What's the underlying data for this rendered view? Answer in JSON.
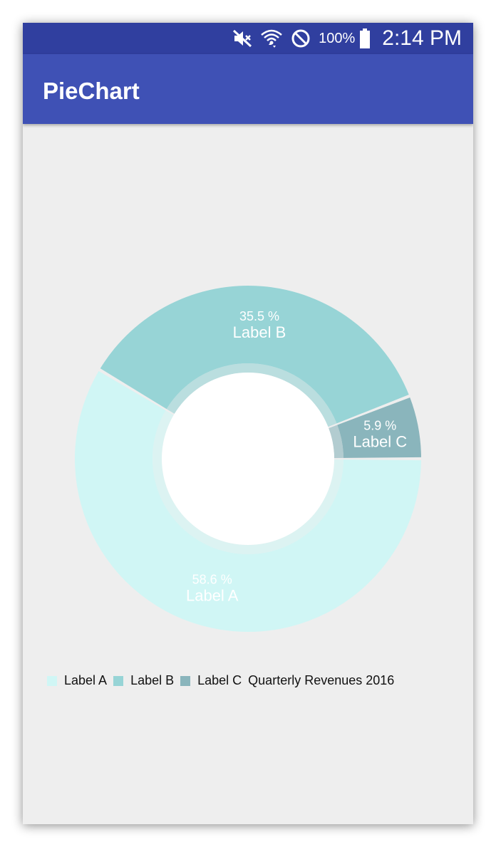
{
  "status_bar": {
    "battery_percent": "100%",
    "time": "2:14 PM",
    "icons": [
      "mute-icon",
      "wifi-icon",
      "do-not-disturb-icon",
      "battery-icon"
    ]
  },
  "app_bar": {
    "title": "PieChart"
  },
  "colors": {
    "status_bar": "#303f9f",
    "app_bar": "#3f51b5",
    "background": "#eeeeee",
    "hole": "#ffffff"
  },
  "chart_data": {
    "type": "pie",
    "style": "donut",
    "description": "Quarterly Revenues 2016",
    "slices": [
      {
        "label": "Label A",
        "value": 58.6,
        "percent_label": "58.6 %",
        "color": "#d0f6f5"
      },
      {
        "label": "Label B",
        "value": 35.5,
        "percent_label": "35.5 %",
        "color": "#97d4d6"
      },
      {
        "label": "Label C",
        "value": 5.9,
        "percent_label": "5.9 %",
        "color": "#8ab5bc"
      }
    ],
    "legend_position": "bottom-left"
  }
}
